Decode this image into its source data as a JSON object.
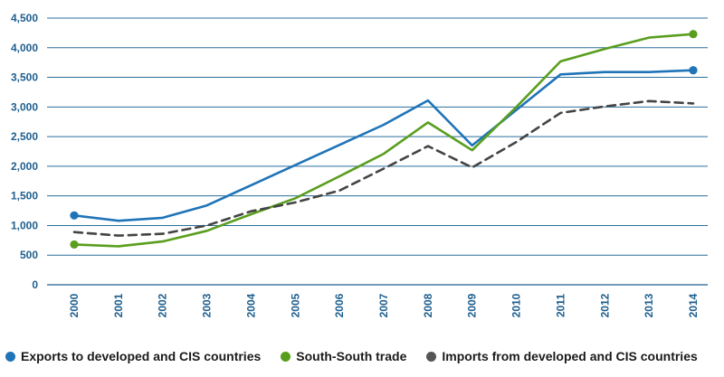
{
  "chart_data": {
    "type": "line",
    "title": "",
    "xlabel": "",
    "ylabel": "",
    "categories": [
      "2000",
      "2001",
      "2002",
      "2003",
      "2004",
      "2005",
      "2006",
      "2007",
      "2008",
      "2009",
      "2010",
      "2011",
      "2012",
      "2013",
      "2014"
    ],
    "ylim": [
      0,
      4500
    ],
    "yticks": [
      "0",
      "500",
      "1,000",
      "1,500",
      "2,000",
      "2,500",
      "3,000",
      "3,500",
      "4,000",
      "4,500"
    ],
    "grid": "horizontal",
    "legend_position": "bottom",
    "series": [
      {
        "name": "Exports to developed and CIS countries",
        "color": "#1f74b8",
        "style": "solid",
        "end_markers": true,
        "values": [
          1170,
          1080,
          1130,
          1340,
          1680,
          2020,
          2360,
          2700,
          3110,
          2350,
          2950,
          3550,
          3590,
          3590,
          3620
        ]
      },
      {
        "name": "South-South trade",
        "color": "#5a9e1e",
        "style": "solid",
        "end_markers": true,
        "values": [
          680,
          650,
          730,
          910,
          1190,
          1460,
          1830,
          2210,
          2740,
          2270,
          3000,
          3770,
          3980,
          4170,
          4230
        ]
      },
      {
        "name": "Imports from developed and CIS countries",
        "color": "#444444",
        "style": "dashed",
        "end_markers": false,
        "values": [
          890,
          830,
          860,
          1000,
          1240,
          1390,
          1590,
          1960,
          2340,
          1980,
          2410,
          2900,
          3010,
          3100,
          3060
        ]
      }
    ]
  }
}
